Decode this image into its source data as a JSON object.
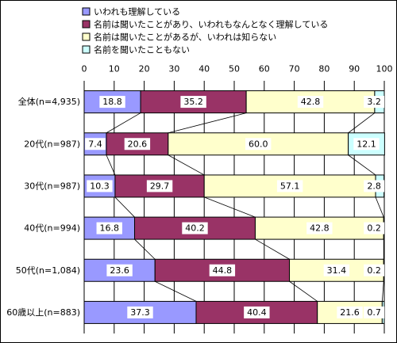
{
  "chart_data": {
    "type": "bar",
    "orientation": "horizontal",
    "stacked": true,
    "xlim": [
      0,
      100
    ],
    "x_ticks": [
      "0",
      "10",
      "20",
      "30",
      "40",
      "50",
      "60",
      "70",
      "80",
      "90",
      "100"
    ],
    "grid": true,
    "legend_placement": "top-left",
    "categories": [
      "全体(n=4,935)",
      "20代(n=987)",
      "30代(n=987)",
      "40代(n=994)",
      "50代(n=1,084)",
      "60歳以上(n=883)"
    ],
    "series": [
      {
        "name": "いわれも理解している",
        "color": "#9999ff",
        "values": [
          18.8,
          7.4,
          10.3,
          16.8,
          23.6,
          37.3
        ]
      },
      {
        "name": "名前は聞いたことがあり、いわれもなんとなく理解している",
        "color": "#993366",
        "values": [
          35.2,
          20.6,
          29.7,
          40.2,
          44.8,
          40.4
        ]
      },
      {
        "name": "名前は聞いたことがあるが、いわれは知らない",
        "color": "#ffffcc",
        "values": [
          42.8,
          60.0,
          57.1,
          42.8,
          31.4,
          21.6
        ]
      },
      {
        "name": "名前を聞いたこともない",
        "color": "#ccffff",
        "values": [
          3.2,
          12.1,
          2.8,
          0.2,
          0.2,
          0.7
        ]
      }
    ],
    "data_labels": [
      [
        "18.8",
        "35.2",
        "42.8",
        "3.2"
      ],
      [
        "7.4",
        "20.6",
        "60.0",
        "12.1"
      ],
      [
        "10.3",
        "29.7",
        "57.1",
        "2.8"
      ],
      [
        "16.8",
        "40.2",
        "42.8",
        "0.2"
      ],
      [
        "23.6",
        "44.8",
        "31.4",
        "0.2"
      ],
      [
        "37.3",
        "40.4",
        "21.6",
        "0.7"
      ]
    ]
  }
}
